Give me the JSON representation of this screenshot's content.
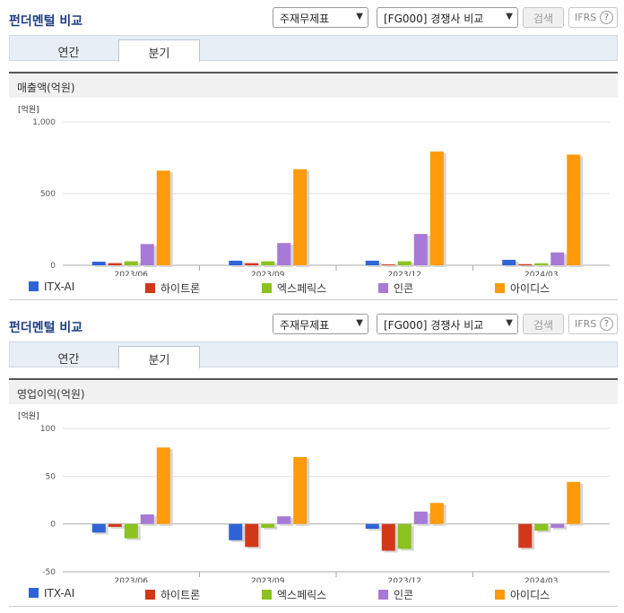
{
  "panels": [
    {
      "title": "펀더멘털 비교",
      "select1": "주재무제표",
      "select2": "[FG000] 경쟁사 비교",
      "search_label": "검색",
      "ifrs_label": "IFRS",
      "help_glyph": "?",
      "tabs": [
        "연간",
        "분기"
      ],
      "active_tab": "분기",
      "metric_title": "매출액(억원)",
      "unit_label": "[억원]"
    },
    {
      "title": "펀더멘털 비교",
      "select1": "주재무제표",
      "select2": "[FG000] 경쟁사 비교",
      "search_label": "검색",
      "ifrs_label": "IFRS",
      "help_glyph": "?",
      "tabs": [
        "연간",
        "분기"
      ],
      "active_tab": "분기",
      "metric_title": "영업이익(억원)",
      "unit_label": "[억원]"
    }
  ],
  "colors": {
    "ITX-AI": "#2f63d6",
    "하이트론": "#d1381a",
    "엑스페릭스": "#8cc21f",
    "인콘": "#a879d6",
    "아이디스": "#ff9a0a"
  },
  "chart_data": [
    {
      "type": "bar",
      "title": "매출액(억원)",
      "ylabel": "[억원]",
      "categories": [
        "2023/06",
        "2023/09",
        "2023/12",
        "2024/03"
      ],
      "ylim": [
        0,
        1000
      ],
      "yticks": [
        0,
        500,
        1000
      ],
      "ytick_labels": [
        "0",
        "500",
        "1,000"
      ],
      "grid": true,
      "legend_position": "bottom",
      "series": [
        {
          "name": "ITX-AI",
          "values": [
            25,
            32,
            32,
            38
          ]
        },
        {
          "name": "하이트론",
          "values": [
            15,
            15,
            6,
            8
          ]
        },
        {
          "name": "엑스페릭스",
          "values": [
            28,
            28,
            28,
            14
          ]
        },
        {
          "name": "인콘",
          "values": [
            148,
            155,
            218,
            90
          ]
        },
        {
          "name": "아이디스",
          "values": [
            660,
            670,
            793,
            772
          ]
        }
      ]
    },
    {
      "type": "bar",
      "title": "영업이익(억원)",
      "ylabel": "[억원]",
      "categories": [
        "2023/06",
        "2023/09",
        "2023/12",
        "2024/03"
      ],
      "ylim": [
        -50,
        100
      ],
      "yticks": [
        -50,
        0,
        50,
        100
      ],
      "ytick_labels": [
        "-50",
        "0",
        "50",
        "100"
      ],
      "grid": true,
      "legend_position": "bottom",
      "series": [
        {
          "name": "ITX-AI",
          "values": [
            -9,
            -17,
            -5,
            0
          ]
        },
        {
          "name": "하이트론",
          "values": [
            -3,
            -24,
            -28,
            -25
          ]
        },
        {
          "name": "엑스페릭스",
          "values": [
            -15,
            -4,
            -26,
            -7
          ]
        },
        {
          "name": "인콘",
          "values": [
            10,
            8,
            13,
            -4
          ]
        },
        {
          "name": "아이디스",
          "values": [
            80,
            70,
            22,
            44
          ]
        }
      ]
    }
  ]
}
